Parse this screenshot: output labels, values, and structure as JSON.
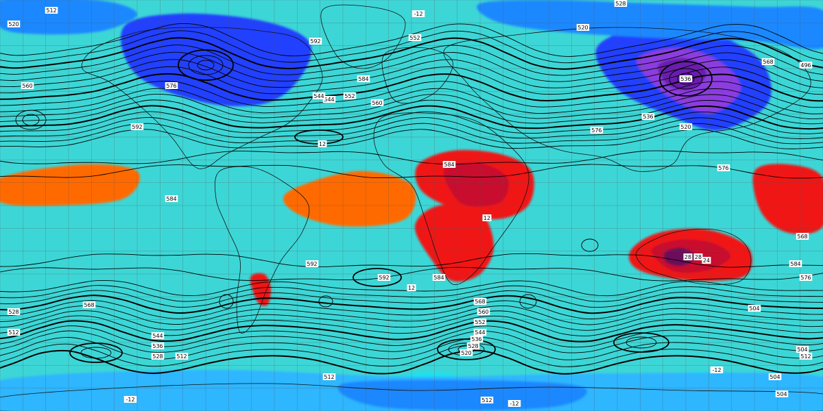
{
  "map": {
    "kind": "global 500 hPa geopotential height / 850 hPa temperature chart (equirectangular)",
    "colors": {
      "deep_purple": "#3a0070",
      "purple": "#6a1fb0",
      "violet": "#8c3de0",
      "blue": "#2040ff",
      "azure": "#1a88ff",
      "sky": "#2fb6ff",
      "cyan": "#19e3f0",
      "aqua": "#3dd6d6",
      "teal_green": "#2fb47a",
      "green": "#3aa83a",
      "lime": "#7cc83a",
      "yellow_green": "#c7df4a",
      "pale_yellow": "#f2f07a",
      "yellow": "#ffd800",
      "orange_yellow": "#ffb000",
      "orange": "#ff8a00",
      "dark_orange": "#ff6a00",
      "red": "#f01818",
      "crimson": "#c8102e",
      "dark_magenta": "#6a0a5a",
      "contour": "#000000",
      "coast": "#111111"
    },
    "contour_labels": [
      {
        "text": "512"
      },
      {
        "text": "520"
      },
      {
        "text": "528"
      },
      {
        "text": "536"
      },
      {
        "text": "544"
      },
      {
        "text": "552"
      },
      {
        "text": "560"
      },
      {
        "text": "568"
      },
      {
        "text": "576"
      },
      {
        "text": "584"
      },
      {
        "text": "592"
      },
      {
        "text": "504"
      },
      {
        "text": "496"
      },
      {
        "text": "12"
      },
      {
        "text": "520"
      },
      {
        "text": "576"
      },
      {
        "text": "568"
      },
      {
        "text": "592"
      },
      {
        "text": "584"
      },
      {
        "text": "576"
      },
      {
        "text": "568"
      },
      {
        "text": "560"
      },
      {
        "text": "552"
      },
      {
        "text": "544"
      },
      {
        "text": "536"
      },
      {
        "text": "528"
      },
      {
        "text": "520"
      },
      {
        "text": "512"
      },
      {
        "text": "504"
      },
      {
        "text": "512"
      },
      {
        "text": "528"
      },
      {
        "text": "520"
      },
      {
        "text": "584"
      },
      {
        "text": "576"
      },
      {
        "text": "568"
      },
      {
        "text": "544"
      },
      {
        "text": "536"
      },
      {
        "text": "528"
      },
      {
        "text": "584"
      },
      {
        "text": "12"
      },
      {
        "text": "12"
      },
      {
        "text": "28"
      },
      {
        "text": "24"
      },
      {
        "text": "592"
      },
      {
        "text": "560"
      },
      {
        "text": "552"
      },
      {
        "text": "544"
      },
      {
        "text": "536"
      },
      {
        "text": "584"
      },
      {
        "text": "-12"
      },
      {
        "text": "-12"
      },
      {
        "text": "512"
      },
      {
        "text": "504"
      },
      {
        "text": "504"
      },
      {
        "text": "512"
      },
      {
        "text": "-12"
      },
      {
        "text": "512"
      },
      {
        "text": "-12"
      },
      {
        "text": "28"
      },
      {
        "text": "592"
      }
    ]
  }
}
